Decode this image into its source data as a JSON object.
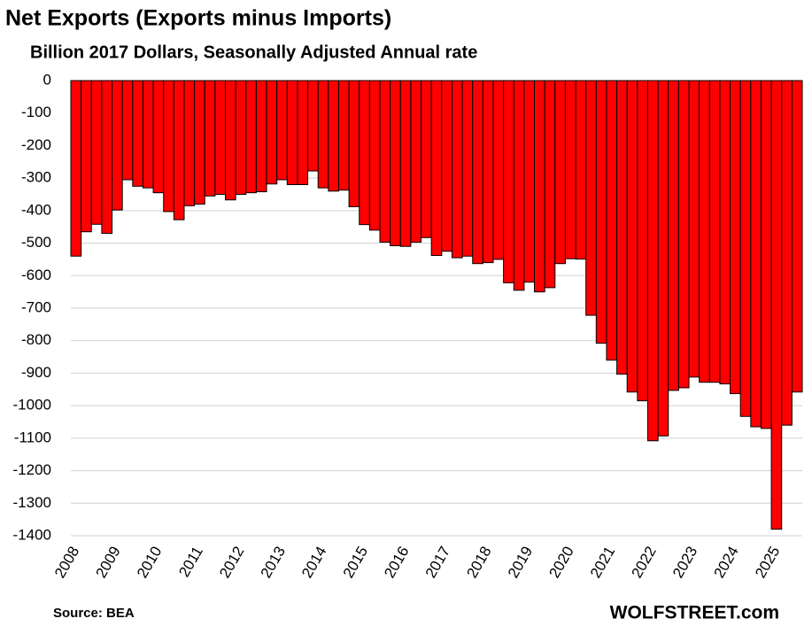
{
  "chart_data": {
    "type": "bar",
    "title": "Net Exports (Exports minus Imports)",
    "subtitle": "Billion 2017 Dollars, Seasonally Adjusted Annual rate",
    "source": "Source: BEA",
    "watermark": "WOLFSTREET.com",
    "categories": [
      "2008",
      null,
      null,
      null,
      "2009",
      null,
      null,
      null,
      "2010",
      null,
      null,
      null,
      "2011",
      null,
      null,
      null,
      "2012",
      null,
      null,
      null,
      "2013",
      null,
      null,
      null,
      "2014",
      null,
      null,
      null,
      "2015",
      null,
      null,
      null,
      "2016",
      null,
      null,
      null,
      "2017",
      null,
      null,
      null,
      "2018",
      null,
      null,
      null,
      "2019",
      null,
      null,
      null,
      "2020",
      null,
      null,
      null,
      "2021",
      null,
      null,
      null,
      "2022",
      null,
      null,
      null,
      "2023",
      null,
      null,
      null,
      "2024",
      null,
      null,
      null,
      "2025",
      null,
      null
    ],
    "values": [
      -540,
      -465,
      -442,
      -470,
      -398,
      -305,
      -325,
      -330,
      -345,
      -403,
      -428,
      -385,
      -380,
      -355,
      -350,
      -367,
      -350,
      -345,
      -342,
      -318,
      -305,
      -320,
      -320,
      -278,
      -330,
      -340,
      -337,
      -388,
      -443,
      -460,
      -497,
      -508,
      -510,
      -497,
      -483,
      -538,
      -525,
      -545,
      -540,
      -563,
      -560,
      -550,
      -622,
      -645,
      -620,
      -650,
      -637,
      -563,
      -548,
      -549,
      -722,
      -808,
      -860,
      -903,
      -958,
      -985,
      -1108,
      -1093,
      -953,
      -945,
      -912,
      -928,
      -928,
      -933,
      -963,
      -1033,
      -1065,
      -1070,
      -1380,
      -1060,
      -958
    ],
    "color": "#ff0000",
    "ylim": [
      -1400,
      0
    ],
    "yticks": [
      0,
      -100,
      -200,
      -300,
      -400,
      -500,
      -600,
      -700,
      -800,
      -900,
      -1000,
      -1100,
      -1200,
      -1300,
      -1400
    ],
    "grid": true
  }
}
